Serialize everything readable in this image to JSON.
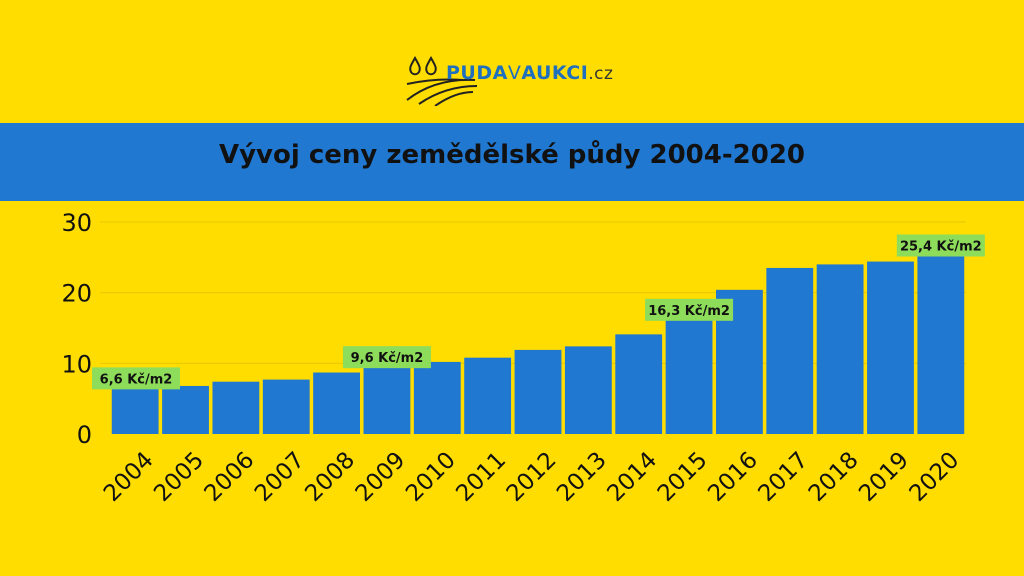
{
  "logo": {
    "part1": "PUDA",
    "part2": "V",
    "part3": "AUKCI",
    "part4": ".cz"
  },
  "title": "Vývoj ceny zemědělské půdy 2004-2020",
  "colors": {
    "background": "#FFDD00",
    "banner": "#2178D1",
    "bar": "#2178D1",
    "label_bg": "#8DDD5A",
    "text": "#111111"
  },
  "chart_data": {
    "type": "bar",
    "categories": [
      "2004",
      "2005",
      "2006",
      "2007",
      "2008",
      "2009",
      "2010",
      "2011",
      "2012",
      "2013",
      "2014",
      "2015",
      "2016",
      "2017",
      "2018",
      "2019",
      "2020"
    ],
    "values": [
      6.6,
      6.8,
      7.4,
      7.7,
      8.7,
      9.6,
      10.2,
      10.8,
      11.9,
      12.4,
      14.1,
      16.3,
      20.4,
      23.5,
      24.0,
      24.4,
      25.4
    ],
    "yticks": [
      0,
      10,
      20,
      30
    ],
    "ylim": [
      0,
      30
    ],
    "grid": true,
    "annotations": [
      {
        "index": 0,
        "text": "6,6 Kč/m2"
      },
      {
        "index": 5,
        "text": "9,6 Kč/m2"
      },
      {
        "index": 11,
        "text": "16,3 Kč/m2"
      },
      {
        "index": 16,
        "text": "25,4 Kč/m2"
      }
    ]
  }
}
